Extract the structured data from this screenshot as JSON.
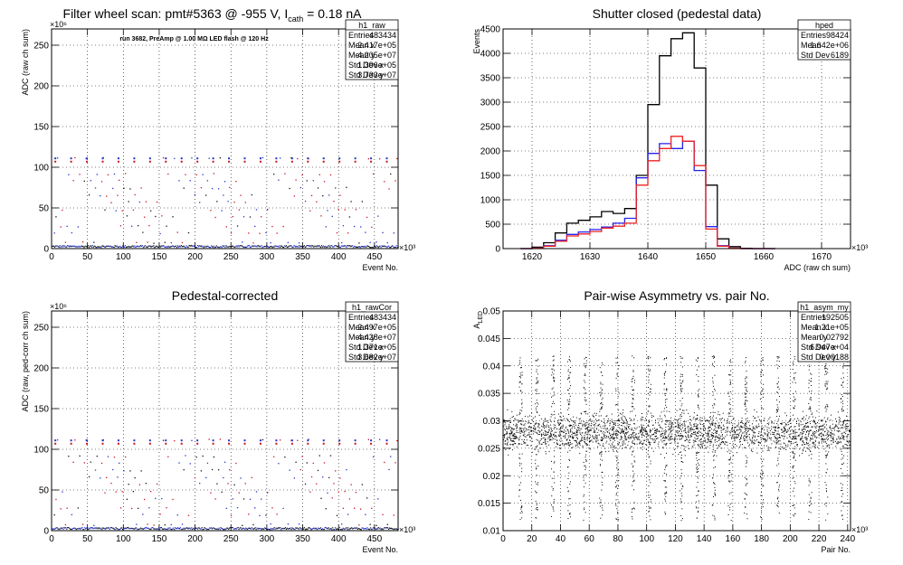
{
  "chart_data": [
    {
      "type": "scatter",
      "title": "Filter wheel scan: pmt#5363 @  -955 V, I",
      "title_sub": "cath",
      "title_tail": " = 0.18 nA",
      "annotation": "run 3682, PreAmp @ 1.00 MΩ LED flash @  120 Hz",
      "xlabel": "Event No.",
      "ylabel": "ADC (raw ch sum)",
      "xexp": "×10³",
      "yexp": "×10⁶",
      "xlim": [
        0,
        483
      ],
      "ylim": [
        0,
        270
      ],
      "xticks": [
        0,
        50,
        100,
        150,
        200,
        250,
        300,
        350,
        400,
        450
      ],
      "yticks": [
        0,
        50,
        100,
        150,
        200,
        250
      ],
      "grid": true,
      "levels": [
        0,
        2,
        8,
        20,
        28,
        40,
        48,
        58,
        66,
        75,
        84,
        92,
        112
      ],
      "period": 22,
      "stats": {
        "name": "h1_raw",
        "rows": [
          [
            "Entries",
            "483434"
          ],
          [
            "Mean x",
            "2.417e+05"
          ],
          [
            "Mean y",
            "4.205e+07"
          ],
          [
            "Std Dev x",
            "1.396e+05"
          ],
          [
            "Std Dev y",
            "3.733e+07"
          ]
        ]
      }
    },
    {
      "type": "line",
      "title": "Shutter closed (pedestal data)",
      "xlabel": "ADC (raw ch sum)",
      "ylabel": "Events",
      "xexp": "×10³",
      "xlim": [
        1615,
        1675
      ],
      "ylim": [
        0,
        4500
      ],
      "xticks": [
        1620,
        1630,
        1640,
        1650,
        1660,
        1670
      ],
      "yticks": [
        0,
        500,
        1000,
        1500,
        2000,
        2500,
        3000,
        3500,
        4000,
        4500
      ],
      "grid": true,
      "x": [
        1618,
        1620,
        1622,
        1624,
        1626,
        1628,
        1630,
        1632,
        1634,
        1636,
        1638,
        1640,
        1642,
        1644,
        1646,
        1648,
        1650,
        1652,
        1654,
        1656,
        1658,
        1660
      ],
      "series": [
        {
          "color": "#000000",
          "values": [
            0,
            30,
            120,
            320,
            520,
            580,
            650,
            760,
            720,
            820,
            1500,
            2950,
            3950,
            4300,
            4420,
            3700,
            1300,
            200,
            40,
            5,
            0,
            0
          ]
        },
        {
          "color": "#2222ee",
          "values": [
            0,
            10,
            60,
            170,
            290,
            340,
            390,
            440,
            520,
            620,
            1450,
            1950,
            2150,
            2050,
            2200,
            1600,
            450,
            60,
            10,
            0,
            0,
            0
          ]
        },
        {
          "color": "#ee2222",
          "values": [
            0,
            10,
            50,
            150,
            260,
            300,
            350,
            420,
            460,
            520,
            1300,
            1800,
            2050,
            2300,
            2200,
            1700,
            400,
            50,
            10,
            0,
            0,
            0
          ]
        }
      ],
      "stats": {
        "name": "hped",
        "rows": [
          [
            "Entries",
            "98424"
          ],
          [
            "Mean",
            "1.642e+06"
          ],
          [
            "Std Dev",
            "6189"
          ]
        ]
      }
    },
    {
      "type": "scatter",
      "title": "Pedestal-corrected",
      "xlabel": "Event No.",
      "ylabel": "ADC (raw, ped-corr ch sum)",
      "xexp": "×10³",
      "yexp": "×10⁶",
      "xlim": [
        0,
        483
      ],
      "ylim": [
        0,
        270
      ],
      "xticks": [
        0,
        50,
        100,
        150,
        200,
        250,
        300,
        350,
        400,
        450
      ],
      "yticks": [
        0,
        50,
        100,
        150,
        200,
        250
      ],
      "grid": true,
      "levels": [
        0,
        2,
        8,
        20,
        28,
        40,
        48,
        58,
        66,
        75,
        84,
        92,
        112
      ],
      "period": 22,
      "stats": {
        "name": "h1_rawCor",
        "rows": [
          [
            "Entries",
            "483434"
          ],
          [
            "Mean x",
            "2.497e+05"
          ],
          [
            "Mean y",
            "4.428e+07"
          ],
          [
            "Std Dev x",
            "1.371e+05"
          ],
          [
            "Std Dev y",
            "3.682e+07"
          ]
        ]
      }
    },
    {
      "type": "scatter",
      "title": "Pair-wise Asymmetry vs. pair No.",
      "xlabel": "Pair No.",
      "ylabel": "A",
      "ylabel_sub": "LED",
      "xexp": "×10³",
      "xlim": [
        0,
        242
      ],
      "ylim": [
        0.01,
        0.05
      ],
      "xticks": [
        0,
        20,
        40,
        60,
        80,
        100,
        120,
        140,
        160,
        180,
        200,
        220,
        240
      ],
      "yticks": [
        0.01,
        0.015,
        0.02,
        0.025,
        0.03,
        0.035,
        0.04,
        0.045,
        0.05
      ],
      "grid": true,
      "center": 0.0279,
      "spike_period": 11.2,
      "stats": {
        "name": "h1_asym_my",
        "rows": [
          [
            "Entries",
            "192505"
          ],
          [
            "Mean x",
            "1.21e+05"
          ],
          [
            "Mean y",
            "0.02792"
          ],
          [
            "Std Dev x",
            "6.947e+04"
          ],
          [
            "Std Dev y",
            "0.00188"
          ]
        ]
      }
    }
  ]
}
